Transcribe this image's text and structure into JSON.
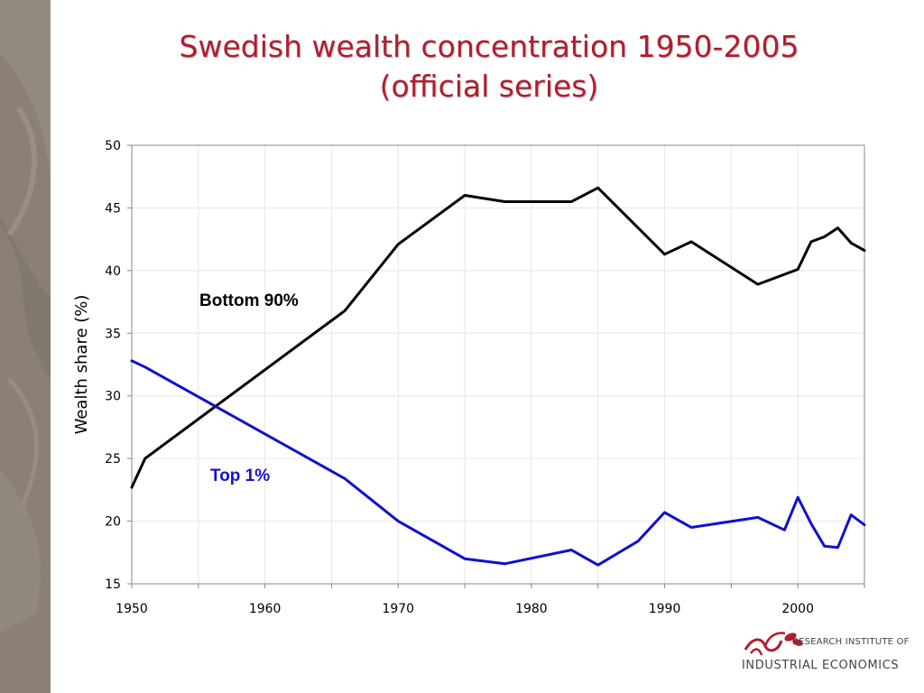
{
  "slide": {
    "title_line1": "Swedish wealth concentration 1950-2005",
    "title_line2": "(official series)",
    "sidebar_color": "#8a8075",
    "accent_color": "#b01e2e"
  },
  "logo": {
    "line1": "RESEARCH INSTITUTE OF",
    "line2": "INDUSTRIAL ECONOMICS"
  },
  "chart_data": {
    "type": "line",
    "ylabel": "Wealth share (%)",
    "xlabel": "",
    "xlim": [
      1950,
      2005
    ],
    "ylim": [
      15,
      50
    ],
    "x_ticks": [
      1950,
      1960,
      1970,
      1980,
      1990,
      2000
    ],
    "y_ticks": [
      15,
      20,
      25,
      30,
      35,
      40,
      45,
      50
    ],
    "grid": true,
    "series": [
      {
        "name": "Bottom 90%",
        "color": "#000000",
        "points": [
          [
            1950,
            22.7
          ],
          [
            1951,
            25.0
          ],
          [
            1966,
            36.8
          ],
          [
            1970,
            42.1
          ],
          [
            1975,
            46.0
          ],
          [
            1978,
            45.5
          ],
          [
            1983,
            45.5
          ],
          [
            1985,
            46.6
          ],
          [
            1990,
            41.3
          ],
          [
            1992,
            42.3
          ],
          [
            1997,
            38.9
          ],
          [
            2000,
            40.1
          ],
          [
            2001,
            42.3
          ],
          [
            2002,
            42.7
          ],
          [
            2003,
            43.4
          ],
          [
            2004,
            42.2
          ],
          [
            2005,
            41.6
          ]
        ]
      },
      {
        "name": "Top 1%",
        "color": "#1010d0",
        "points": [
          [
            1950,
            32.8
          ],
          [
            1951,
            32.3
          ],
          [
            1966,
            23.4
          ],
          [
            1970,
            20.0
          ],
          [
            1975,
            17.0
          ],
          [
            1978,
            16.6
          ],
          [
            1983,
            17.7
          ],
          [
            1985,
            16.5
          ],
          [
            1988,
            18.4
          ],
          [
            1990,
            20.7
          ],
          [
            1992,
            19.5
          ],
          [
            1997,
            20.3
          ],
          [
            1999,
            19.3
          ],
          [
            2000,
            21.9
          ],
          [
            2001,
            19.8
          ],
          [
            2002,
            18.0
          ],
          [
            2003,
            17.9
          ],
          [
            2004,
            20.5
          ],
          [
            2005,
            19.7
          ]
        ]
      }
    ]
  }
}
